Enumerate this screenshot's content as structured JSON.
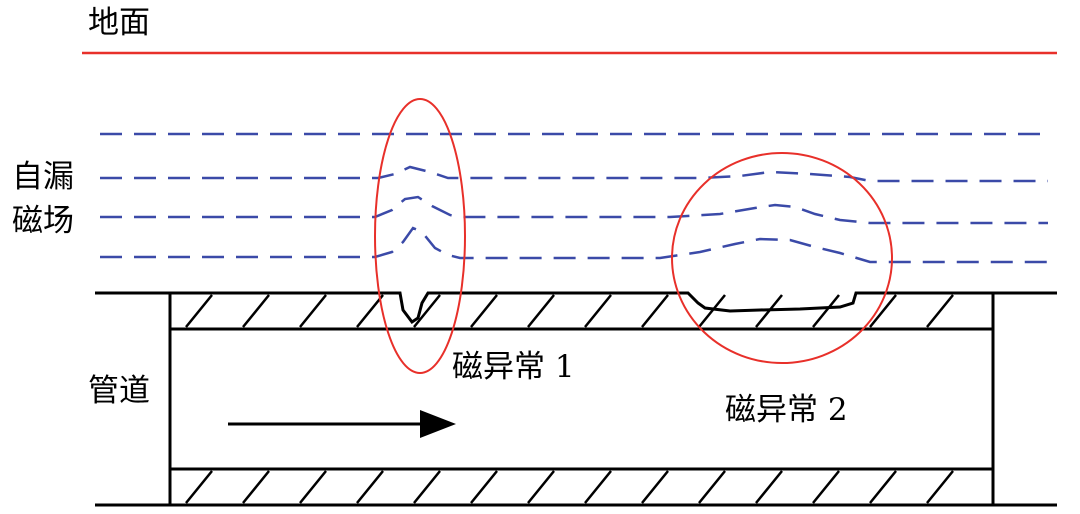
{
  "labels": {
    "ground": "地面",
    "self_leakage_field_line1": "自漏",
    "self_leakage_field_line2": "磁场",
    "pipe": "管道",
    "anomaly1": "磁异常 1",
    "anomaly2": "磁异常 2"
  },
  "colors": {
    "ground_line": "#e8302a",
    "field_lines": "#3b4aa8",
    "anomaly_outline": "#e8302a",
    "pipe": "#000000"
  }
}
